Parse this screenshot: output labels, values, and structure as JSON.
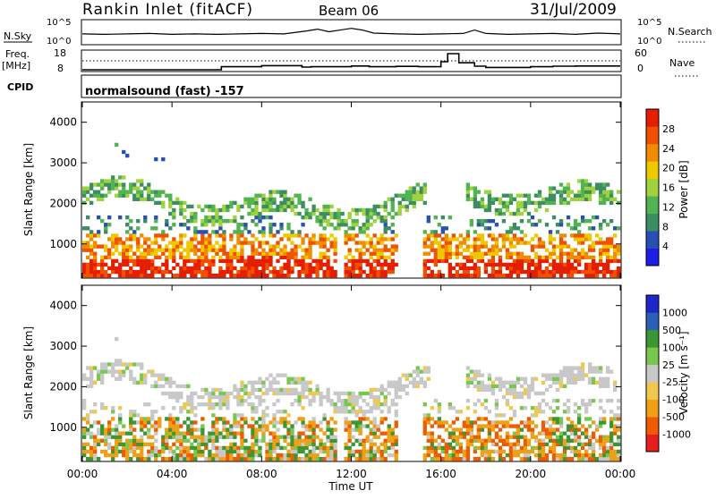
{
  "header": {
    "station": "Rankin Inlet (fitACF)",
    "beam": "Beam 06",
    "date": "31/Jul/2009"
  },
  "panel_labels": {
    "nsky": "N.Sky",
    "nsearch": "N.Search",
    "freq": "Freq.",
    "mhz": "[MHz]",
    "nave": "Nave",
    "cpid": "CPID",
    "program": "normalsound (fast) -157"
  },
  "colors": {
    "power_scale": [
      "#1e1ee6",
      "#2850b4",
      "#3c8c64",
      "#50b450",
      "#a0d23c",
      "#f0c800",
      "#f08c00",
      "#f05000",
      "#e61e00"
    ],
    "velocity_scale": [
      "#e61e1e",
      "#f05a00",
      "#f0a014",
      "#f0c850",
      "#c8c8c8",
      "#78c850",
      "#3c9632",
      "#2c60b4",
      "#1e28c8"
    ],
    "missing": "#ffffff"
  },
  "chart_data": [
    {
      "type": "line",
      "name": "noise-panel",
      "ylabel_left": "N.Sky",
      "ylabel_right": "N.Search",
      "left_ticks": [
        "10^5",
        "10^0"
      ],
      "right_ticks": [
        "10^5",
        "10^0"
      ],
      "x_hours": [
        0,
        1,
        2,
        3,
        4,
        5,
        6,
        7,
        8,
        9,
        10,
        10.5,
        11,
        12,
        12.5,
        13,
        14,
        15,
        16,
        17,
        17.5,
        18,
        19,
        20,
        21,
        22,
        23,
        24
      ],
      "values_log10": [
        2.1,
        2.0,
        2.1,
        2.2,
        2.0,
        2.1,
        2.0,
        2.1,
        2.2,
        2.1,
        2.8,
        3.2,
        2.6,
        3.4,
        3.0,
        2.3,
        2.1,
        2.0,
        2.1,
        2.2,
        3.0,
        2.2,
        2.0,
        2.1,
        2.2,
        2.0,
        2.3,
        2.1
      ]
    },
    {
      "type": "line",
      "name": "frequency-nave-panel",
      "left_ticks": [
        "18",
        "8"
      ],
      "right_ticks": [
        "60",
        "0"
      ],
      "freq_steps_hours": [
        0,
        6,
        6.2,
        7.5,
        8,
        9.8,
        10.2,
        12,
        12.8,
        14,
        15,
        16,
        16.3,
        16.8,
        17.5,
        18,
        20,
        21,
        22,
        24
      ],
      "freq_mhz": [
        8.5,
        8.5,
        10.2,
        10.2,
        10.8,
        10.0,
        10.2,
        10.6,
        10.2,
        10.4,
        10.2,
        13.0,
        17.5,
        12.4,
        10.5,
        9.8,
        10.2,
        10.5,
        10.6,
        10.6
      ],
      "nave_level": 12
    },
    {
      "type": "heatmap",
      "name": "power",
      "ylabel": "Slant Range [km]",
      "yticks": [
        1000,
        2000,
        3000,
        4000
      ],
      "ylim": [
        180,
        4500
      ],
      "colorbar_label": "Power [dB]",
      "colorbar_ticks": [
        4,
        8,
        12,
        16,
        20,
        24,
        28
      ],
      "clim": [
        0,
        30
      ]
    },
    {
      "type": "heatmap",
      "name": "velocity",
      "ylabel": "Slant Range [km]",
      "yticks": [
        1000,
        2000,
        3000,
        4000
      ],
      "ylim": [
        180,
        4500
      ],
      "colorbar_label": "Velocity [m s⁻¹]",
      "colorbar_ticks": [
        -1000,
        -500,
        -100,
        -25,
        25,
        100,
        500,
        1000
      ],
      "xlabel": "Time UT",
      "xticks": [
        "00:00",
        "04:00",
        "08:00",
        "12:00",
        "16:00",
        "20:00",
        "00:00"
      ],
      "xlim_hours": [
        0,
        24
      ]
    }
  ]
}
